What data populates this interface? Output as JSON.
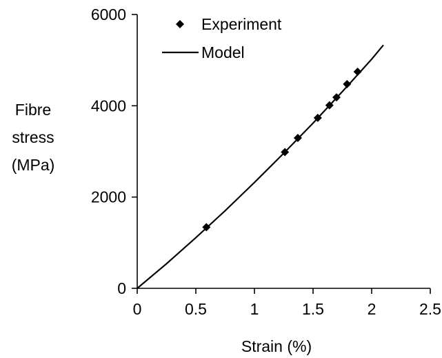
{
  "chart_data": {
    "type": "scatter",
    "title": "",
    "xlabel": "Strain (%)",
    "ylabel_lines": [
      "Fibre",
      "stress",
      "(MPa)"
    ],
    "xlim": [
      0,
      2.5
    ],
    "ylim": [
      0,
      6000
    ],
    "xticks": [
      0,
      0.5,
      1,
      1.5,
      2,
      2.5
    ],
    "xtick_labels": [
      "0",
      "0.5",
      "1",
      "1.5",
      "2",
      "2.5"
    ],
    "yticks": [
      0,
      2000,
      4000,
      6000
    ],
    "ytick_labels": [
      "0",
      "2000",
      "4000",
      "6000"
    ],
    "grid": false,
    "legend_position": "top-left",
    "series": [
      {
        "name": "Experiment",
        "kind": "markers",
        "marker": "diamond",
        "color": "#000000",
        "x": [
          0.59,
          1.26,
          1.37,
          1.54,
          1.64,
          1.7,
          1.79,
          1.88
        ],
        "y": [
          1340,
          2985,
          3295,
          3735,
          4010,
          4185,
          4475,
          4745
        ]
      },
      {
        "name": "Model",
        "kind": "line",
        "color": "#000000",
        "x": [
          0,
          0.25,
          0.5,
          0.75,
          1.0,
          1.25,
          1.5,
          1.75,
          2.0,
          2.1
        ],
        "y": [
          0,
          540,
          1110,
          1700,
          2320,
          2960,
          3620,
          4310,
          5020,
          5330
        ]
      }
    ]
  }
}
